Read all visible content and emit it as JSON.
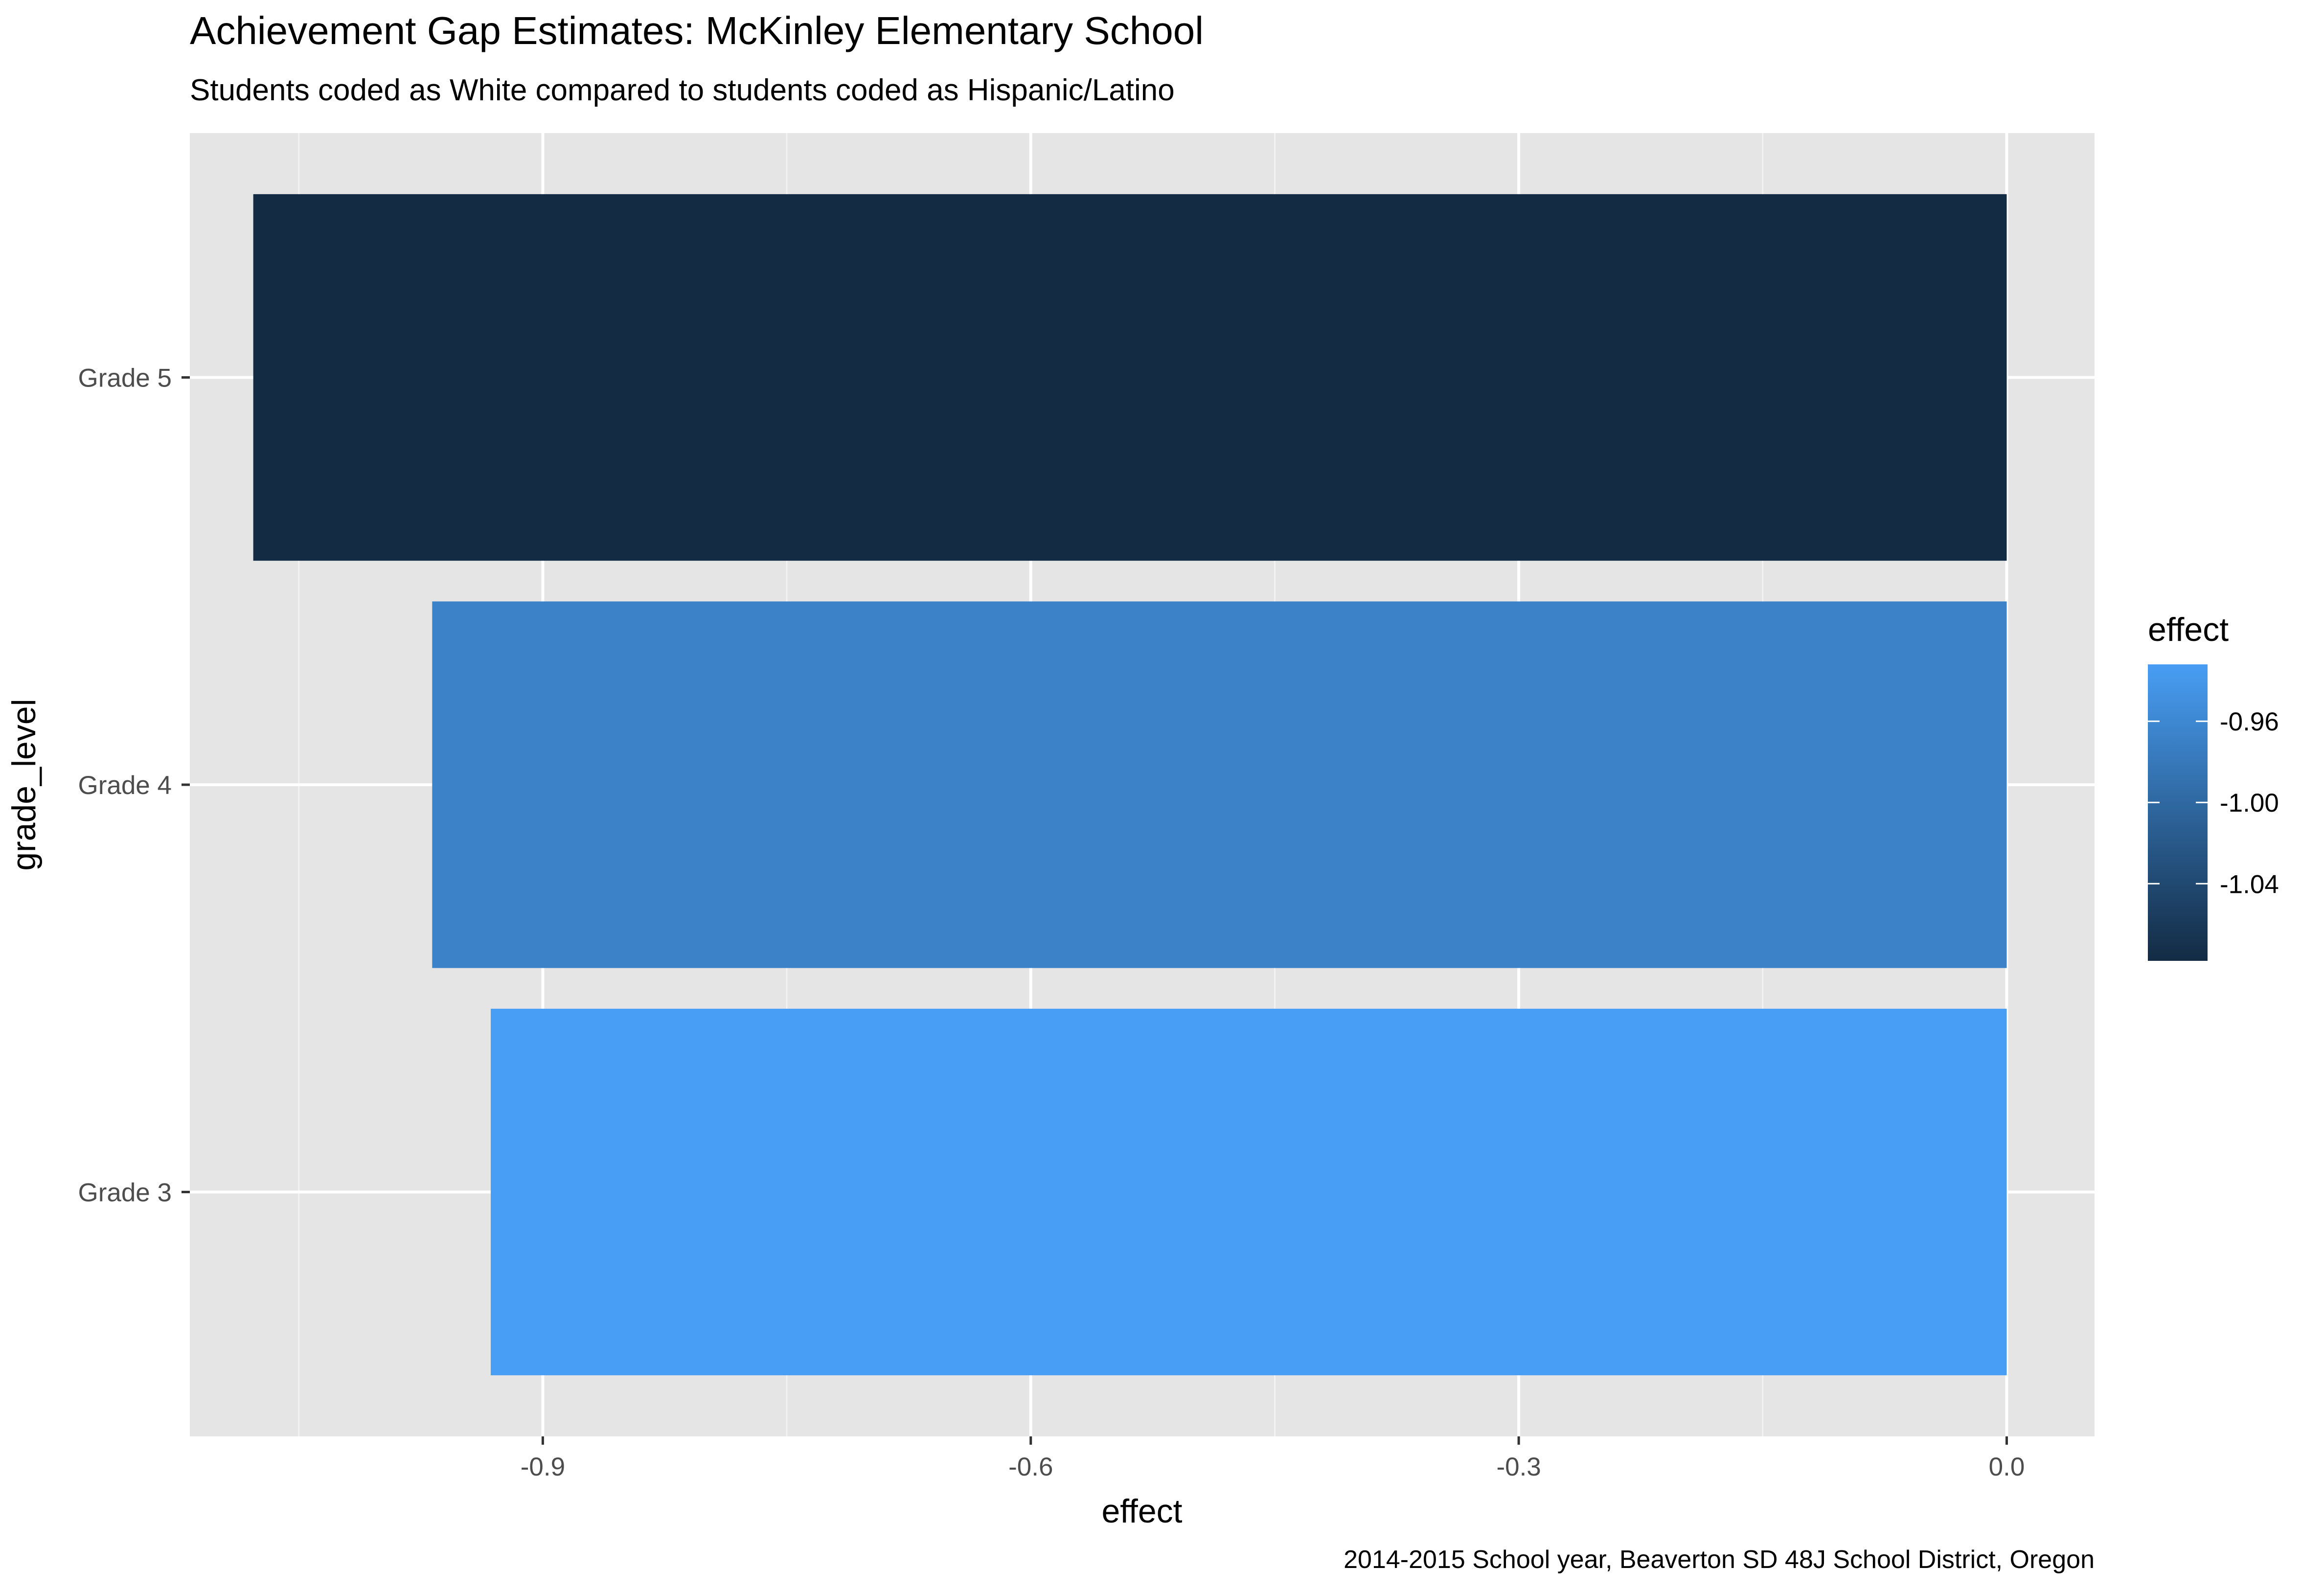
{
  "chart_data": {
    "type": "bar",
    "orientation": "horizontal",
    "title": "Achievement Gap Estimates: McKinley Elementary School",
    "subtitle": "Students coded as White compared to students coded as Hispanic/Latino",
    "caption": "2014-2015 School year, Beaverton SD 48J School District, Oregon",
    "xlabel": "effect",
    "ylabel": "grade_level",
    "categories": [
      "Grade 3",
      "Grade 4",
      "Grade 5"
    ],
    "values": [
      -0.932,
      -0.968,
      -1.078
    ],
    "xlim": [
      -1.117,
      0.054
    ],
    "x_ticks": [
      -0.9,
      -0.6,
      -0.3,
      0.0
    ],
    "x_tick_labels": [
      "-0.9",
      "-0.6",
      "-0.3",
      "0.0"
    ],
    "grid": true,
    "panel_background": "#e5e5e5",
    "legend": {
      "title": "effect",
      "placement": "right",
      "type": "colorbar",
      "range": [
        -1.078,
        -0.932
      ],
      "low_color": "#132b43",
      "high_color": "#489ef4",
      "ticks": [
        -0.96,
        -1.0,
        -1.04
      ],
      "tick_labels": [
        "-0.96",
        "-1.00",
        "-1.04"
      ]
    }
  }
}
